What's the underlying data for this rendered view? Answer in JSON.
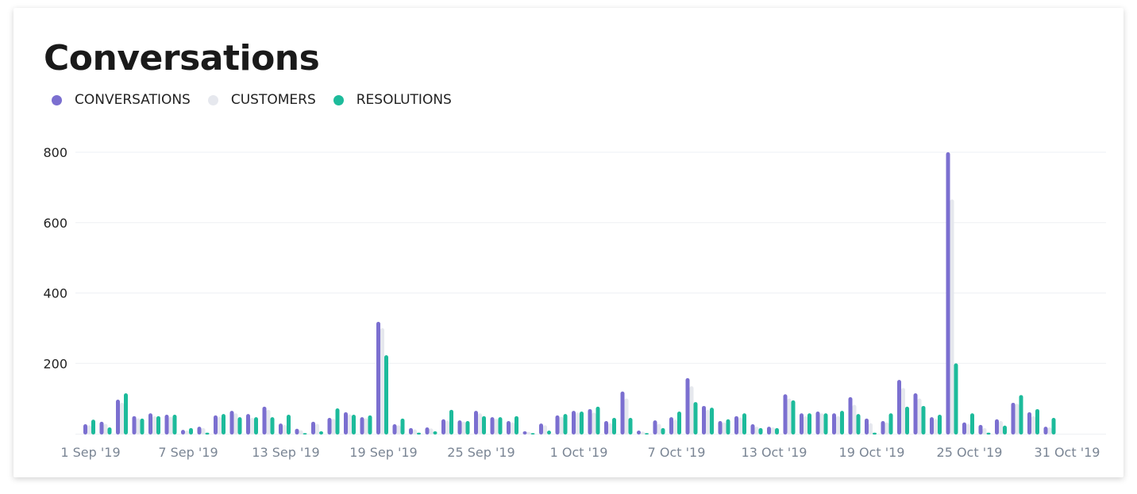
{
  "title": "Conversations",
  "colors": {
    "conversations": "#7b6fd0",
    "customers": "#e6e8ee",
    "resolutions": "#1dbb9b"
  },
  "chart_data": {
    "type": "bar",
    "title": "Conversations",
    "legend_placement": "top-left",
    "grid": true,
    "ylim": [
      0,
      800
    ],
    "yticks": [
      "200",
      "400",
      "600",
      "800"
    ],
    "xtick_labels": [
      "1 Sep '19",
      "7 Sep '19",
      "13 Sep '19",
      "19 Sep '19",
      "25 Sep '19",
      "1 Oct '19",
      "7 Oct '19",
      "13 Oct '19",
      "19 Oct '19",
      "25 Oct '19",
      "31 Oct '19"
    ],
    "categories": [
      "2019-09-01",
      "2019-09-02",
      "2019-09-03",
      "2019-09-04",
      "2019-09-05",
      "2019-09-06",
      "2019-09-07",
      "2019-09-08",
      "2019-09-09",
      "2019-09-10",
      "2019-09-11",
      "2019-09-12",
      "2019-09-13",
      "2019-09-14",
      "2019-09-15",
      "2019-09-16",
      "2019-09-17",
      "2019-09-18",
      "2019-09-19",
      "2019-09-20",
      "2019-09-21",
      "2019-09-22",
      "2019-09-23",
      "2019-09-24",
      "2019-09-25",
      "2019-09-26",
      "2019-09-27",
      "2019-09-28",
      "2019-09-29",
      "2019-09-30",
      "2019-10-01",
      "2019-10-02",
      "2019-10-03",
      "2019-10-04",
      "2019-10-05",
      "2019-10-06",
      "2019-10-07",
      "2019-10-08",
      "2019-10-09",
      "2019-10-10",
      "2019-10-11",
      "2019-10-12",
      "2019-10-13",
      "2019-10-14",
      "2019-10-15",
      "2019-10-16",
      "2019-10-17",
      "2019-10-18",
      "2019-10-19",
      "2019-10-20",
      "2019-10-21",
      "2019-10-22",
      "2019-10-23",
      "2019-10-24",
      "2019-10-25",
      "2019-10-26",
      "2019-10-27",
      "2019-10-28",
      "2019-10-29",
      "2019-10-30",
      "2019-10-31"
    ],
    "series": [
      {
        "name": "CONVERSATIONS",
        "values": [
          27,
          34,
          97,
          50,
          58,
          54,
          11,
          20,
          52,
          65,
          56,
          77,
          29,
          14,
          34,
          45,
          61,
          47,
          318,
          27,
          16,
          18,
          41,
          38,
          65,
          47,
          36,
          7,
          29,
          52,
          65,
          70,
          36,
          120,
          9,
          38,
          47,
          158,
          79,
          36,
          50,
          27,
          20,
          112,
          58,
          63,
          58,
          104,
          43,
          36,
          153,
          115,
          47,
          800,
          32,
          25,
          41,
          88,
          61,
          20,
          0
        ]
      },
      {
        "name": "CUSTOMERS",
        "values": [
          24,
          28,
          88,
          44,
          50,
          48,
          9,
          16,
          48,
          58,
          45,
          68,
          25,
          10,
          28,
          42,
          55,
          44,
          300,
          24,
          12,
          15,
          37,
          34,
          58,
          42,
          32,
          5,
          24,
          48,
          60,
          60,
          30,
          100,
          6,
          28,
          40,
          135,
          68,
          32,
          46,
          20,
          18,
          100,
          50,
          58,
          50,
          82,
          30,
          32,
          130,
          100,
          42,
          666,
          28,
          16,
          36,
          85,
          50,
          18,
          0
        ]
      },
      {
        "name": "RESOLUTIONS",
        "values": [
          40,
          18,
          115,
          43,
          50,
          54,
          16,
          3,
          56,
          47,
          47,
          47,
          54,
          2,
          7,
          72,
          54,
          52,
          223,
          43,
          3,
          7,
          68,
          36,
          50,
          47,
          50,
          2,
          9,
          56,
          63,
          77,
          45,
          45,
          2,
          16,
          63,
          90,
          74,
          41,
          58,
          16,
          16,
          95,
          58,
          58,
          65,
          56,
          3,
          58,
          77,
          79,
          54,
          200,
          58,
          3,
          23,
          110,
          70,
          45,
          0
        ]
      }
    ]
  }
}
